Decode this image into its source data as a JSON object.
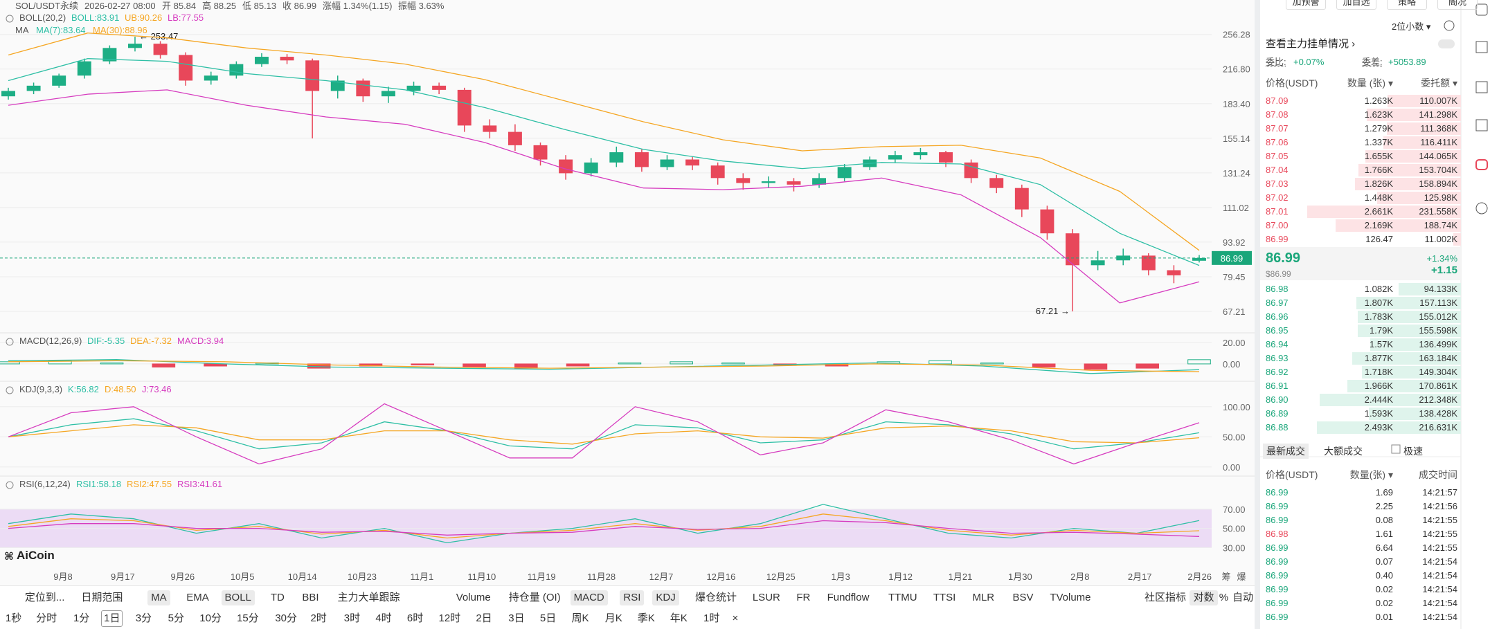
{
  "header": {
    "symbol": "SOL/USDT永续",
    "time": "2026-02-27 08:00",
    "open": "开 85.84",
    "high": "高 88.25",
    "low": "低 85.13",
    "close": "收 86.99",
    "change": "涨幅 1.34%(1.15)",
    "amplitude": "振幅 3.63%"
  },
  "ma_legend": {
    "title": "MA",
    "items": [
      "MA(7):83.64",
      "MA(30):88.96"
    ],
    "colors": [
      "#2ebfa5",
      "#f5a623"
    ]
  },
  "watermark": "AiCoin",
  "chart_data": [
    {
      "type": "candlestick",
      "title": "BOLL(20,2)",
      "up_color": "#1dae85",
      "down_color": "#e8475a",
      "log_scale": true,
      "ylim": [
        61.2,
        302.6
      ],
      "yticks": [
        256.28,
        {
          "value": 216.8,
          "label": "216.80"
        },
        {
          "value": 183.4,
          "label": "183.40"
        },
        155.14,
        131.24,
        111.02,
        93.92,
        79.45,
        67.21
      ],
      "candles": [
        [
          190,
          198,
          187,
          195
        ],
        [
          195,
          203,
          192,
          200
        ],
        [
          200,
          212,
          198,
          210
        ],
        [
          210,
          228,
          207,
          225
        ],
        [
          225,
          243,
          222,
          240
        ],
        [
          240,
          253.47,
          236,
          245
        ],
        [
          245,
          248,
          228,
          232
        ],
        [
          232,
          235,
          200,
          205
        ],
        [
          205,
          214,
          201,
          210
        ],
        [
          210,
          225,
          207,
          222
        ],
        [
          222,
          234,
          219,
          230
        ],
        [
          230,
          233,
          222,
          226
        ],
        [
          226,
          228,
          155,
          195
        ],
        [
          195,
          210,
          188,
          205
        ],
        [
          205,
          207,
          185,
          190
        ],
        [
          190,
          199,
          184,
          195
        ],
        [
          195,
          204,
          191,
          200
        ],
        [
          200,
          203,
          192,
          196
        ],
        [
          196,
          198,
          160,
          165
        ],
        [
          165,
          170,
          155,
          160
        ],
        [
          160,
          166,
          146,
          150
        ],
        [
          150,
          152,
          136,
          140
        ],
        [
          140,
          143,
          127,
          131
        ],
        [
          131,
          141,
          129,
          138
        ],
        [
          138,
          149,
          135,
          145
        ],
        [
          145,
          147,
          132,
          135
        ],
        [
          135,
          143,
          133,
          140
        ],
        [
          140,
          142,
          133,
          136
        ],
        [
          136,
          138,
          124,
          128
        ],
        [
          128,
          131,
          121,
          125
        ],
        [
          125,
          129,
          122,
          126
        ],
        [
          126,
          128,
          120,
          124
        ],
        [
          124,
          131,
          122,
          128
        ],
        [
          128,
          137,
          126,
          135
        ],
        [
          135,
          142,
          133,
          140
        ],
        [
          140,
          146,
          138,
          143
        ],
        [
          143,
          148,
          140,
          145
        ],
        [
          145,
          146,
          135,
          138
        ],
        [
          138,
          140,
          125,
          128
        ],
        [
          128,
          130,
          119,
          122
        ],
        [
          122,
          124,
          106,
          110
        ],
        [
          110,
          112,
          95,
          98
        ],
        [
          98,
          100,
          67.21,
          84
        ],
        [
          84,
          90,
          82,
          86
        ],
        [
          86,
          91,
          84,
          88
        ],
        [
          88,
          89,
          80,
          82
        ],
        [
          82,
          84,
          77,
          80
        ],
        [
          85.84,
          88.25,
          85.13,
          86.99
        ]
      ],
      "series": [
        {
          "name": "BOLL:83.91",
          "color": "#2ebfa5",
          "values": [
            205,
            228,
            225,
            212,
            205,
            196,
            180,
            162,
            147,
            139,
            134,
            138,
            137,
            124,
            98,
            83.91
          ]
        },
        {
          "name": "UB:90.26",
          "color": "#f5a623",
          "values": [
            232,
            258,
            252,
            240,
            232,
            222,
            206,
            186,
            168,
            154,
            146,
            149,
            150,
            141,
            120,
            90.26
          ]
        },
        {
          "name": "LB:77.55",
          "color": "#d63cbf",
          "values": [
            182,
            192,
            196,
            182,
            172,
            166,
            152,
            134,
            122,
            121,
            123,
            128,
            118,
            96,
            70,
            77.55
          ]
        }
      ],
      "x_tick_labels": [
        "9月8",
        "9月17",
        "9月26",
        "10月5",
        "10月14",
        "10月23",
        "11月1",
        "11月10",
        "11月19",
        "11月28",
        "12月7",
        "12月16",
        "12月25",
        "1月3",
        "1月12",
        "1月21",
        "1月30",
        "2月8",
        "2月17",
        "2月26"
      ],
      "max_label": "← 253.47",
      "min_label": "67.21 →",
      "last_price_label": "86.99",
      "last_price_color": "#1aa67a"
    },
    {
      "type": "macd",
      "title": "MACD(12,26,9)",
      "ylim": [
        -15.6,
        27.8
      ],
      "yticks": [
        {
          "value": 20,
          "label": "20.00"
        },
        {
          "value": 0,
          "label": "0.00"
        }
      ],
      "series": [
        {
          "name": "DIF:-5.35",
          "color": "#2ebfa5",
          "values": [
            3,
            4,
            0,
            -3,
            -4,
            -5,
            -3,
            -1,
            1,
            -2,
            -9,
            -5.35
          ]
        },
        {
          "name": "DEA:-7.32",
          "color": "#f5a623",
          "values": [
            2,
            3,
            2,
            -1,
            -3,
            -4,
            -3,
            -2,
            0,
            -1,
            -6,
            -7.32
          ]
        }
      ],
      "histogram": {
        "name": "MACD:3.94",
        "color": "#d63cbf",
        "up_color": "#1dae85",
        "down_color": "#e8475a",
        "values": [
          2,
          3,
          1,
          -3,
          -2,
          1,
          -4,
          -2,
          -1,
          -3,
          -4,
          -2,
          1,
          2,
          1,
          -1,
          -2,
          2,
          3,
          1,
          -3,
          -5,
          -4,
          3.94
        ]
      }
    },
    {
      "type": "line",
      "title": "KDJ(9,3,3)",
      "ylim": [
        -14,
        140
      ],
      "yticks": [
        {
          "value": 100,
          "label": "100.00"
        },
        {
          "value": 50,
          "label": "50.00"
        },
        {
          "value": 0,
          "label": "0.00"
        }
      ],
      "series": [
        {
          "name": "K:56.82",
          "color": "#2ebfa5",
          "values": [
            50,
            70,
            80,
            60,
            30,
            40,
            75,
            60,
            35,
            30,
            70,
            65,
            40,
            45,
            75,
            70,
            55,
            30,
            40,
            56.82
          ]
        },
        {
          "name": "D:48.50",
          "color": "#f5a623",
          "values": [
            50,
            60,
            70,
            65,
            45,
            45,
            60,
            60,
            45,
            38,
            55,
            60,
            50,
            48,
            65,
            68,
            60,
            42,
            40,
            48.5
          ]
        },
        {
          "name": "J:73.46",
          "color": "#d63cbf",
          "values": [
            50,
            90,
            100,
            50,
            5,
            30,
            105,
            60,
            15,
            15,
            100,
            75,
            20,
            40,
            95,
            75,
            45,
            5,
            40,
            73.46
          ]
        }
      ]
    },
    {
      "type": "line",
      "title": "RSI(6,12,24)",
      "ylim": [
        13,
        103
      ],
      "yticks": [
        {
          "value": 70,
          "label": "70.00"
        },
        {
          "value": 50,
          "label": "50.00"
        },
        {
          "value": 30,
          "label": "30.00"
        }
      ],
      "band": {
        "from": 30,
        "to": 70,
        "color": "#ecdcf5"
      },
      "series": [
        {
          "name": "RSI1:58.18",
          "color": "#2ebfa5",
          "values": [
            55,
            65,
            60,
            45,
            55,
            40,
            50,
            35,
            45,
            50,
            60,
            45,
            55,
            75,
            60,
            45,
            40,
            50,
            45,
            58.18
          ]
        },
        {
          "name": "RSI2:47.55",
          "color": "#f5a623",
          "values": [
            52,
            60,
            58,
            48,
            52,
            44,
            48,
            40,
            45,
            48,
            55,
            48,
            52,
            65,
            58,
            48,
            43,
            48,
            45,
            47.55
          ]
        },
        {
          "name": "RSI3:41.61",
          "color": "#d63cbf",
          "values": [
            50,
            55,
            55,
            50,
            50,
            46,
            47,
            43,
            45,
            46,
            52,
            49,
            50,
            58,
            56,
            50,
            45,
            46,
            44,
            41.61
          ]
        }
      ]
    }
  ],
  "x_axis_extra": [
    "筹",
    "爆"
  ],
  "toolbar": {
    "row1": [
      {
        "label": "定位到...",
        "on": false
      },
      {
        "label": "日期范围",
        "on": false
      },
      {
        "label": "MA",
        "on": true
      },
      {
        "label": "EMA",
        "on": false
      },
      {
        "label": "BOLL",
        "on": true
      },
      {
        "label": "TD",
        "on": false
      },
      {
        "label": "BBI",
        "on": false
      },
      {
        "label": "主力大单跟踪",
        "on": false
      },
      {
        "label": "Volume",
        "on": false
      },
      {
        "label": "持仓量 (OI)",
        "on": false
      },
      {
        "label": "MACD",
        "on": true
      },
      {
        "label": "RSI",
        "on": true
      },
      {
        "label": "KDJ",
        "on": true
      },
      {
        "label": "爆仓统计",
        "on": false
      },
      {
        "label": "LSUR",
        "on": false
      },
      {
        "label": "FR",
        "on": false
      },
      {
        "label": "Fundflow",
        "on": false
      },
      {
        "label": "TTMU",
        "on": false
      },
      {
        "label": "TTSI",
        "on": false
      },
      {
        "label": "MLR",
        "on": false
      },
      {
        "label": "BSV",
        "on": false
      },
      {
        "label": "TVolume",
        "on": false
      },
      {
        "label": "社区指标",
        "on": false
      },
      {
        "label": "对数",
        "on": true
      },
      {
        "label": "%",
        "on": false
      },
      {
        "label": "自动",
        "on": false
      }
    ],
    "row2": [
      {
        "label": "1秒",
        "on": false
      },
      {
        "label": "分时",
        "on": false
      },
      {
        "label": "1分",
        "on": false
      },
      {
        "label": "1日",
        "on": true
      },
      {
        "label": "3分",
        "on": false
      },
      {
        "label": "5分",
        "on": false
      },
      {
        "label": "10分",
        "on": false
      },
      {
        "label": "15分",
        "on": false
      },
      {
        "label": "30分",
        "on": false
      },
      {
        "label": "2时",
        "on": false
      },
      {
        "label": "3时",
        "on": false
      },
      {
        "label": "4时",
        "on": false
      },
      {
        "label": "6时",
        "on": false
      },
      {
        "label": "12时",
        "on": false
      },
      {
        "label": "2日",
        "on": false
      },
      {
        "label": "3日",
        "on": false
      },
      {
        "label": "5日",
        "on": false
      },
      {
        "label": "周K",
        "on": false
      },
      {
        "label": "月K",
        "on": false
      },
      {
        "label": "季K",
        "on": false
      },
      {
        "label": "年K",
        "on": false
      },
      {
        "label": "1时",
        "on": false
      },
      {
        "label": "×",
        "on": false
      }
    ]
  },
  "panel": {
    "actions": [
      "加预警",
      "加自选",
      "策略",
      "阁况"
    ],
    "decimals": "2位小数 ▾",
    "main_orders": "查看主力挂单情况 ›",
    "ratio_label": "委比:",
    "ratio": "+0.07%",
    "diff_label": "委差:",
    "diff": "+5053.89",
    "book_headers": [
      "价格(USDT)",
      "数量 (张) ▾",
      "委托额 ▾"
    ],
    "ask_color": "#e8475a",
    "bid_color": "#1aa67a",
    "ask_depth_color": "#fde3e5",
    "bid_depth_color": "#dff4ec",
    "asks": [
      [
        "87.09",
        "1.263K",
        "110.007K"
      ],
      [
        "87.08",
        "1.623K",
        "141.298K"
      ],
      [
        "87.07",
        "1.279K",
        "111.368K"
      ],
      [
        "87.06",
        "1.337K",
        "116.411K"
      ],
      [
        "87.05",
        "1.655K",
        "144.065K"
      ],
      [
        "87.04",
        "1.766K",
        "153.704K"
      ],
      [
        "87.03",
        "1.826K",
        "158.894K"
      ],
      [
        "87.02",
        "1.448K",
        "125.98K"
      ],
      [
        "87.01",
        "2.661K",
        "231.558K"
      ],
      [
        "87.00",
        "2.169K",
        "188.74K"
      ],
      [
        "86.99",
        "126.47",
        "11.002K"
      ]
    ],
    "last": {
      "price": "86.99",
      "usd": "$86.99",
      "pct": "+1.34%",
      "chg": "+1.15"
    },
    "bids": [
      [
        "86.98",
        "1.082K",
        "94.133K"
      ],
      [
        "86.97",
        "1.807K",
        "157.113K"
      ],
      [
        "86.96",
        "1.783K",
        "155.012K"
      ],
      [
        "86.95",
        "1.79K",
        "155.598K"
      ],
      [
        "86.94",
        "1.57K",
        "136.499K"
      ],
      [
        "86.93",
        "1.877K",
        "163.184K"
      ],
      [
        "86.92",
        "1.718K",
        "149.304K"
      ],
      [
        "86.91",
        "1.966K",
        "170.861K"
      ],
      [
        "86.90",
        "2.444K",
        "212.348K"
      ],
      [
        "86.89",
        "1.593K",
        "138.428K"
      ],
      [
        "86.88",
        "2.493K",
        "216.631K"
      ]
    ],
    "trade_tabs": [
      "最新成交",
      "大额成交"
    ],
    "fast": "极速",
    "trade_headers": [
      "价格(USDT)",
      "数量(张) ▾",
      "成交时间"
    ],
    "trades": [
      {
        "price": "86.99",
        "qty": "1.69",
        "time": "14:21:57",
        "color": "#1aa67a"
      },
      {
        "price": "86.99",
        "qty": "2.25",
        "time": "14:21:56",
        "color": "#1aa67a"
      },
      {
        "price": "86.99",
        "qty": "0.08",
        "time": "14:21:55",
        "color": "#1aa67a"
      },
      {
        "price": "86.98",
        "qty": "1.61",
        "time": "14:21:55",
        "color": "#e8475a"
      },
      {
        "price": "86.99",
        "qty": "6.64",
        "time": "14:21:55",
        "color": "#1aa67a"
      },
      {
        "price": "86.99",
        "qty": "0.07",
        "time": "14:21:54",
        "color": "#1aa67a"
      },
      {
        "price": "86.99",
        "qty": "0.40",
        "time": "14:21:54",
        "color": "#1aa67a"
      },
      {
        "price": "86.99",
        "qty": "0.02",
        "time": "14:21:54",
        "color": "#1aa67a"
      },
      {
        "price": "86.99",
        "qty": "0.02",
        "time": "14:21:54",
        "color": "#1aa67a"
      },
      {
        "price": "86.99",
        "qty": "0.01",
        "time": "14:21:54",
        "color": "#1aa67a"
      }
    ]
  }
}
